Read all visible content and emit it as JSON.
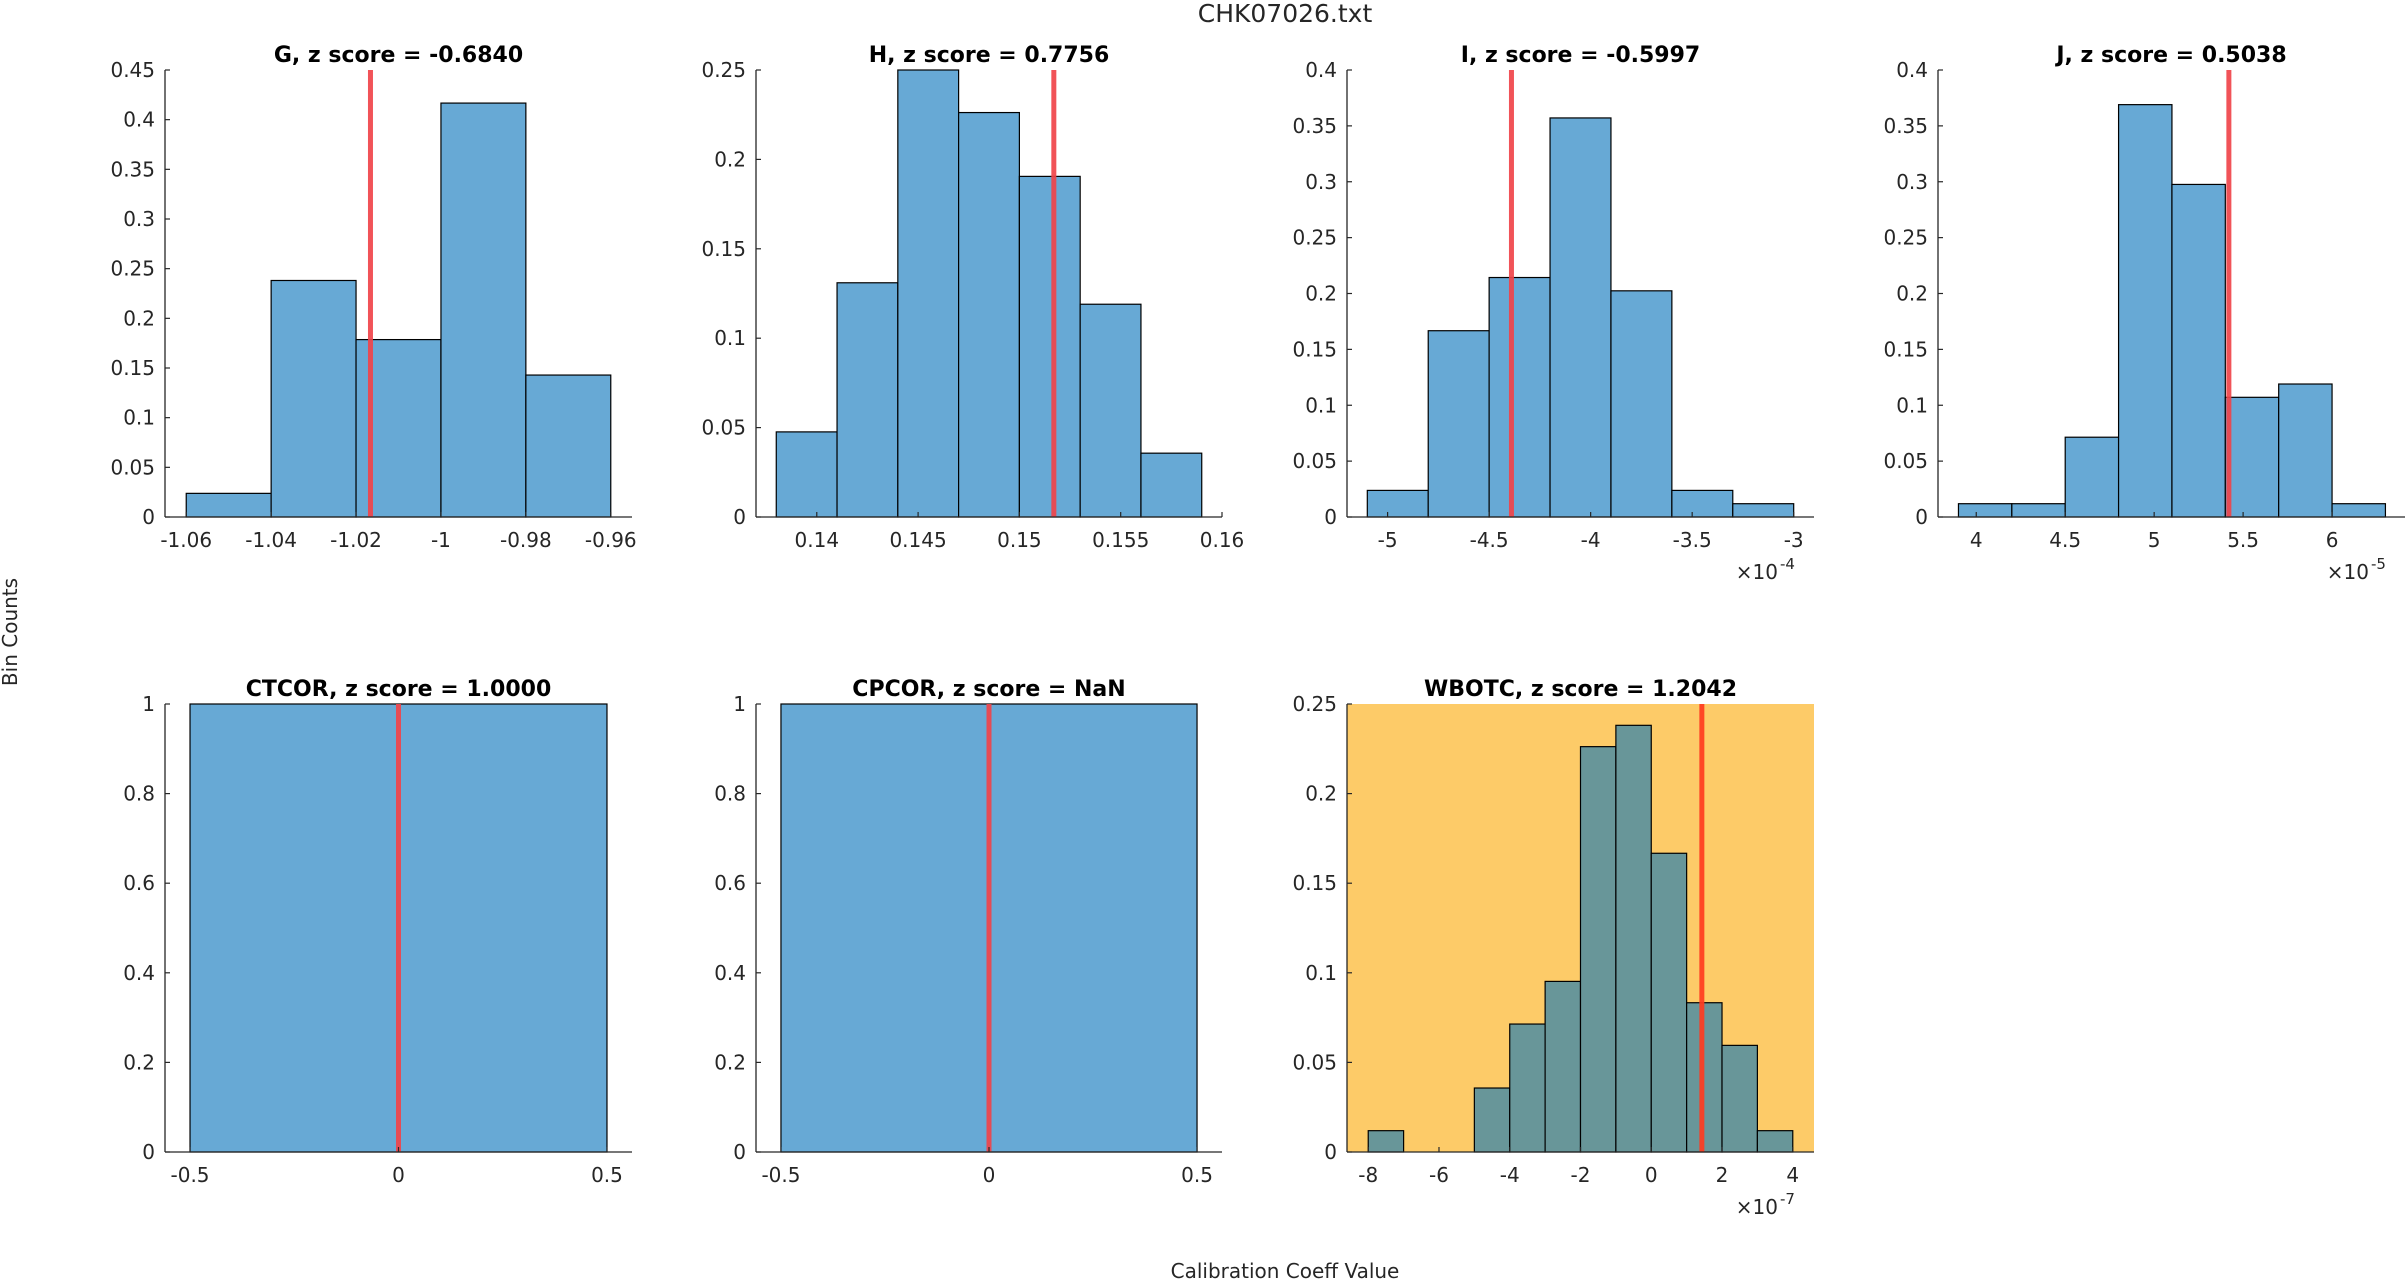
{
  "figure": {
    "title": "CHK07026.txt",
    "xlabel": "Calibration Coeff Value",
    "ylabel": "Bin Counts"
  },
  "colors": {
    "bar": "#67a9d5",
    "bar_flagged": "#689699",
    "flag_background": "#fdcb68",
    "marker_line": "#f0444a",
    "marker_line_flagged": "#ff3b1f",
    "edge": "#000000"
  },
  "chart_data": [
    {
      "type": "bar",
      "name": "G",
      "title": "G, z score = -0.6840",
      "z_score": -0.684,
      "flagged": false,
      "bin_edges": [
        -1.06,
        -1.04,
        -1.02,
        -1.0,
        -0.98,
        -0.96
      ],
      "values": [
        0.0238,
        0.2381,
        0.1786,
        0.4167,
        0.1429
      ],
      "marker_x": -1.0166,
      "xlim": [
        -1.065,
        -0.955
      ],
      "ylim": [
        0,
        0.45
      ],
      "xticks": [
        -1.06,
        -1.04,
        -1.02,
        -1,
        -0.98,
        -0.96
      ],
      "xtick_labels": [
        "-1.06",
        "-1.04",
        "-1.02",
        "-1",
        "-0.98",
        "-0.96"
      ],
      "yticks": [
        0,
        0.05,
        0.1,
        0.15,
        0.2,
        0.25,
        0.3,
        0.35,
        0.4,
        0.45
      ],
      "ytick_labels": [
        "0",
        "0.05",
        "0.1",
        "0.15",
        "0.2",
        "0.25",
        "0.3",
        "0.35",
        "0.4",
        "0.45"
      ],
      "x_exponent": "",
      "row": 0,
      "col": 0
    },
    {
      "type": "bar",
      "name": "H",
      "title": "H, z score = 0.7756",
      "z_score": 0.7756,
      "flagged": false,
      "bin_edges": [
        0.138,
        0.141,
        0.144,
        0.147,
        0.15,
        0.153,
        0.156,
        0.159
      ],
      "values": [
        0.0476,
        0.131,
        0.25,
        0.2262,
        0.1905,
        0.119,
        0.0357
      ],
      "marker_x": 0.1517,
      "xlim": [
        0.137,
        0.16
      ],
      "ylim": [
        0,
        0.25
      ],
      "xticks": [
        0.14,
        0.145,
        0.15,
        0.155,
        0.16
      ],
      "xtick_labels": [
        "0.14",
        "0.145",
        "0.15",
        "0.155",
        "0.16"
      ],
      "yticks": [
        0,
        0.05,
        0.1,
        0.15,
        0.2,
        0.25
      ],
      "ytick_labels": [
        "0",
        "0.05",
        "0.1",
        "0.15",
        "0.2",
        "0.25"
      ],
      "x_exponent": "",
      "row": 0,
      "col": 1
    },
    {
      "type": "bar",
      "name": "I",
      "title": "I, z score = -0.5997",
      "z_score": -0.5997,
      "flagged": false,
      "bin_edges": [
        -5.1,
        -4.8,
        -4.5,
        -4.2,
        -3.9,
        -3.6,
        -3.3,
        -3.0
      ],
      "values": [
        0.0238,
        0.1667,
        0.2143,
        0.3571,
        0.2024,
        0.0238,
        0.0119
      ],
      "marker_x": -4.39,
      "xlim": [
        -5.2,
        -2.9
      ],
      "ylim": [
        0,
        0.4
      ],
      "xticks": [
        -5,
        -4.5,
        -4,
        -3.5,
        -3
      ],
      "xtick_labels": [
        "-5",
        "-4.5",
        "-4",
        "-3.5",
        "-3"
      ],
      "yticks": [
        0,
        0.05,
        0.1,
        0.15,
        0.2,
        0.25,
        0.3,
        0.35,
        0.4
      ],
      "ytick_labels": [
        "0",
        "0.05",
        "0.1",
        "0.15",
        "0.2",
        "0.25",
        "0.3",
        "0.35",
        "0.4"
      ],
      "x_exponent": "-4",
      "row": 0,
      "col": 2
    },
    {
      "type": "bar",
      "name": "J",
      "title": "J, z score = 0.5038",
      "z_score": 0.5038,
      "flagged": false,
      "bin_edges": [
        3.9,
        4.2,
        4.5,
        4.8,
        5.1,
        5.4,
        5.7,
        6.0,
        6.3
      ],
      "values": [
        0.0119,
        0.0119,
        0.0714,
        0.369,
        0.2976,
        0.1071,
        0.119,
        0.0119
      ],
      "marker_x": 5.42,
      "xlim": [
        3.785,
        6.41
      ],
      "ylim": [
        0,
        0.4
      ],
      "xticks": [
        4,
        4.5,
        5,
        5.5,
        6
      ],
      "xtick_labels": [
        "4",
        "4.5",
        "5",
        "5.5",
        "6"
      ],
      "yticks": [
        0,
        0.05,
        0.1,
        0.15,
        0.2,
        0.25,
        0.3,
        0.35,
        0.4
      ],
      "ytick_labels": [
        "0",
        "0.05",
        "0.1",
        "0.15",
        "0.2",
        "0.25",
        "0.3",
        "0.35",
        "0.4"
      ],
      "x_exponent": "-5",
      "row": 0,
      "col": 3
    },
    {
      "type": "bar",
      "name": "CTCOR",
      "title": "CTCOR, z score = 1.0000",
      "z_score": 1.0,
      "flagged": false,
      "bin_edges": [
        -0.5,
        0.5
      ],
      "values": [
        1
      ],
      "marker_x": 0,
      "xlim": [
        -0.56,
        0.56
      ],
      "ylim": [
        0,
        1
      ],
      "xticks": [
        -0.5,
        0,
        0.5
      ],
      "xtick_labels": [
        "-0.5",
        "0",
        "0.5"
      ],
      "yticks": [
        0,
        0.2,
        0.4,
        0.6,
        0.8,
        1
      ],
      "ytick_labels": [
        "0",
        "0.2",
        "0.4",
        "0.6",
        "0.8",
        "1"
      ],
      "x_exponent": "",
      "row": 1,
      "col": 0
    },
    {
      "type": "bar",
      "name": "CPCOR",
      "title": "CPCOR, z score = NaN",
      "z_score": "NaN",
      "flagged": false,
      "bin_edges": [
        -0.5,
        0.5
      ],
      "values": [
        1
      ],
      "marker_x": 0,
      "xlim": [
        -0.56,
        0.56
      ],
      "ylim": [
        0,
        1
      ],
      "xticks": [
        -0.5,
        0,
        0.5
      ],
      "xtick_labels": [
        "-0.5",
        "0",
        "0.5"
      ],
      "yticks": [
        0,
        0.2,
        0.4,
        0.6,
        0.8,
        1
      ],
      "ytick_labels": [
        "0",
        "0.2",
        "0.4",
        "0.6",
        "0.8",
        "1"
      ],
      "x_exponent": "",
      "row": 1,
      "col": 1
    },
    {
      "type": "bar",
      "name": "WBOTC",
      "title": "WBOTC, z score = 1.2042",
      "z_score": 1.2042,
      "flagged": true,
      "bin_edges": [
        -8,
        -7,
        -6,
        -5,
        -4,
        -3,
        -2,
        -1,
        0,
        1,
        2,
        3,
        4
      ],
      "values": [
        0.0119,
        0,
        0,
        0.0357,
        0.0714,
        0.0952,
        0.2262,
        0.2381,
        0.1667,
        0.0833,
        0.0595,
        0.0119
      ],
      "marker_x": 1.43,
      "xlim": [
        -8.6,
        4.6
      ],
      "ylim": [
        0,
        0.25
      ],
      "xticks": [
        -8,
        -6,
        -4,
        -2,
        0,
        2,
        4
      ],
      "xtick_labels": [
        "-8",
        "-6",
        "-4",
        "-2",
        "0",
        "2",
        "4"
      ],
      "yticks": [
        0,
        0.05,
        0.1,
        0.15,
        0.2,
        0.25
      ],
      "ytick_labels": [
        "0",
        "0.05",
        "0.1",
        "0.15",
        "0.2",
        "0.25"
      ],
      "x_exponent": "-7",
      "row": 1,
      "col": 2
    }
  ]
}
